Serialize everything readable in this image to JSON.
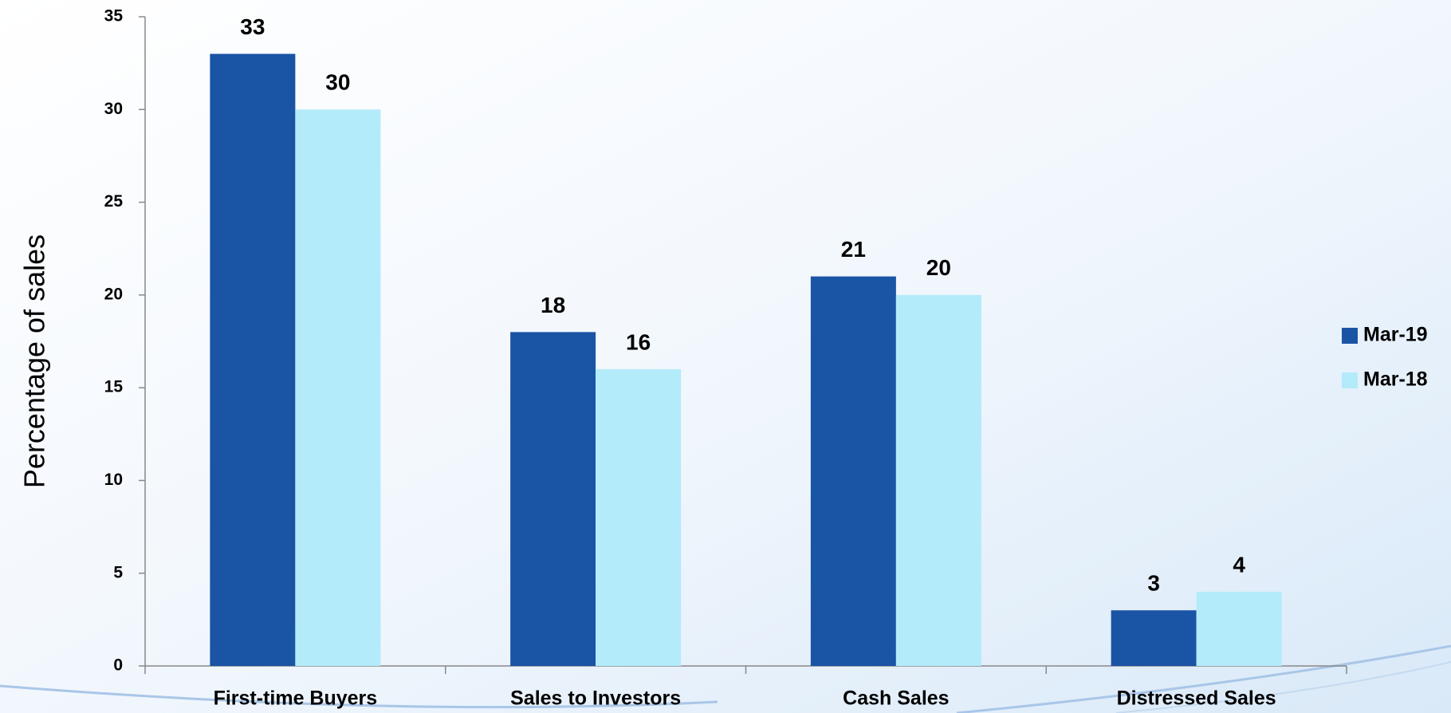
{
  "chart_data": {
    "type": "bar",
    "categories": [
      "First-time Buyers",
      "Sales to Investors",
      "Cash Sales",
      "Distressed Sales"
    ],
    "series": [
      {
        "name": "Mar-19",
        "color": "#1a54a5",
        "values": [
          33,
          18,
          21,
          3
        ]
      },
      {
        "name": "Mar-18",
        "color": "#b3ebfb",
        "values": [
          30,
          16,
          20,
          4
        ]
      }
    ],
    "y_label": "Percentage of  sales",
    "ylim": [
      0,
      35
    ],
    "yticks": [
      0,
      5,
      10,
      15,
      20,
      25,
      30,
      35
    ],
    "legend": "right"
  }
}
